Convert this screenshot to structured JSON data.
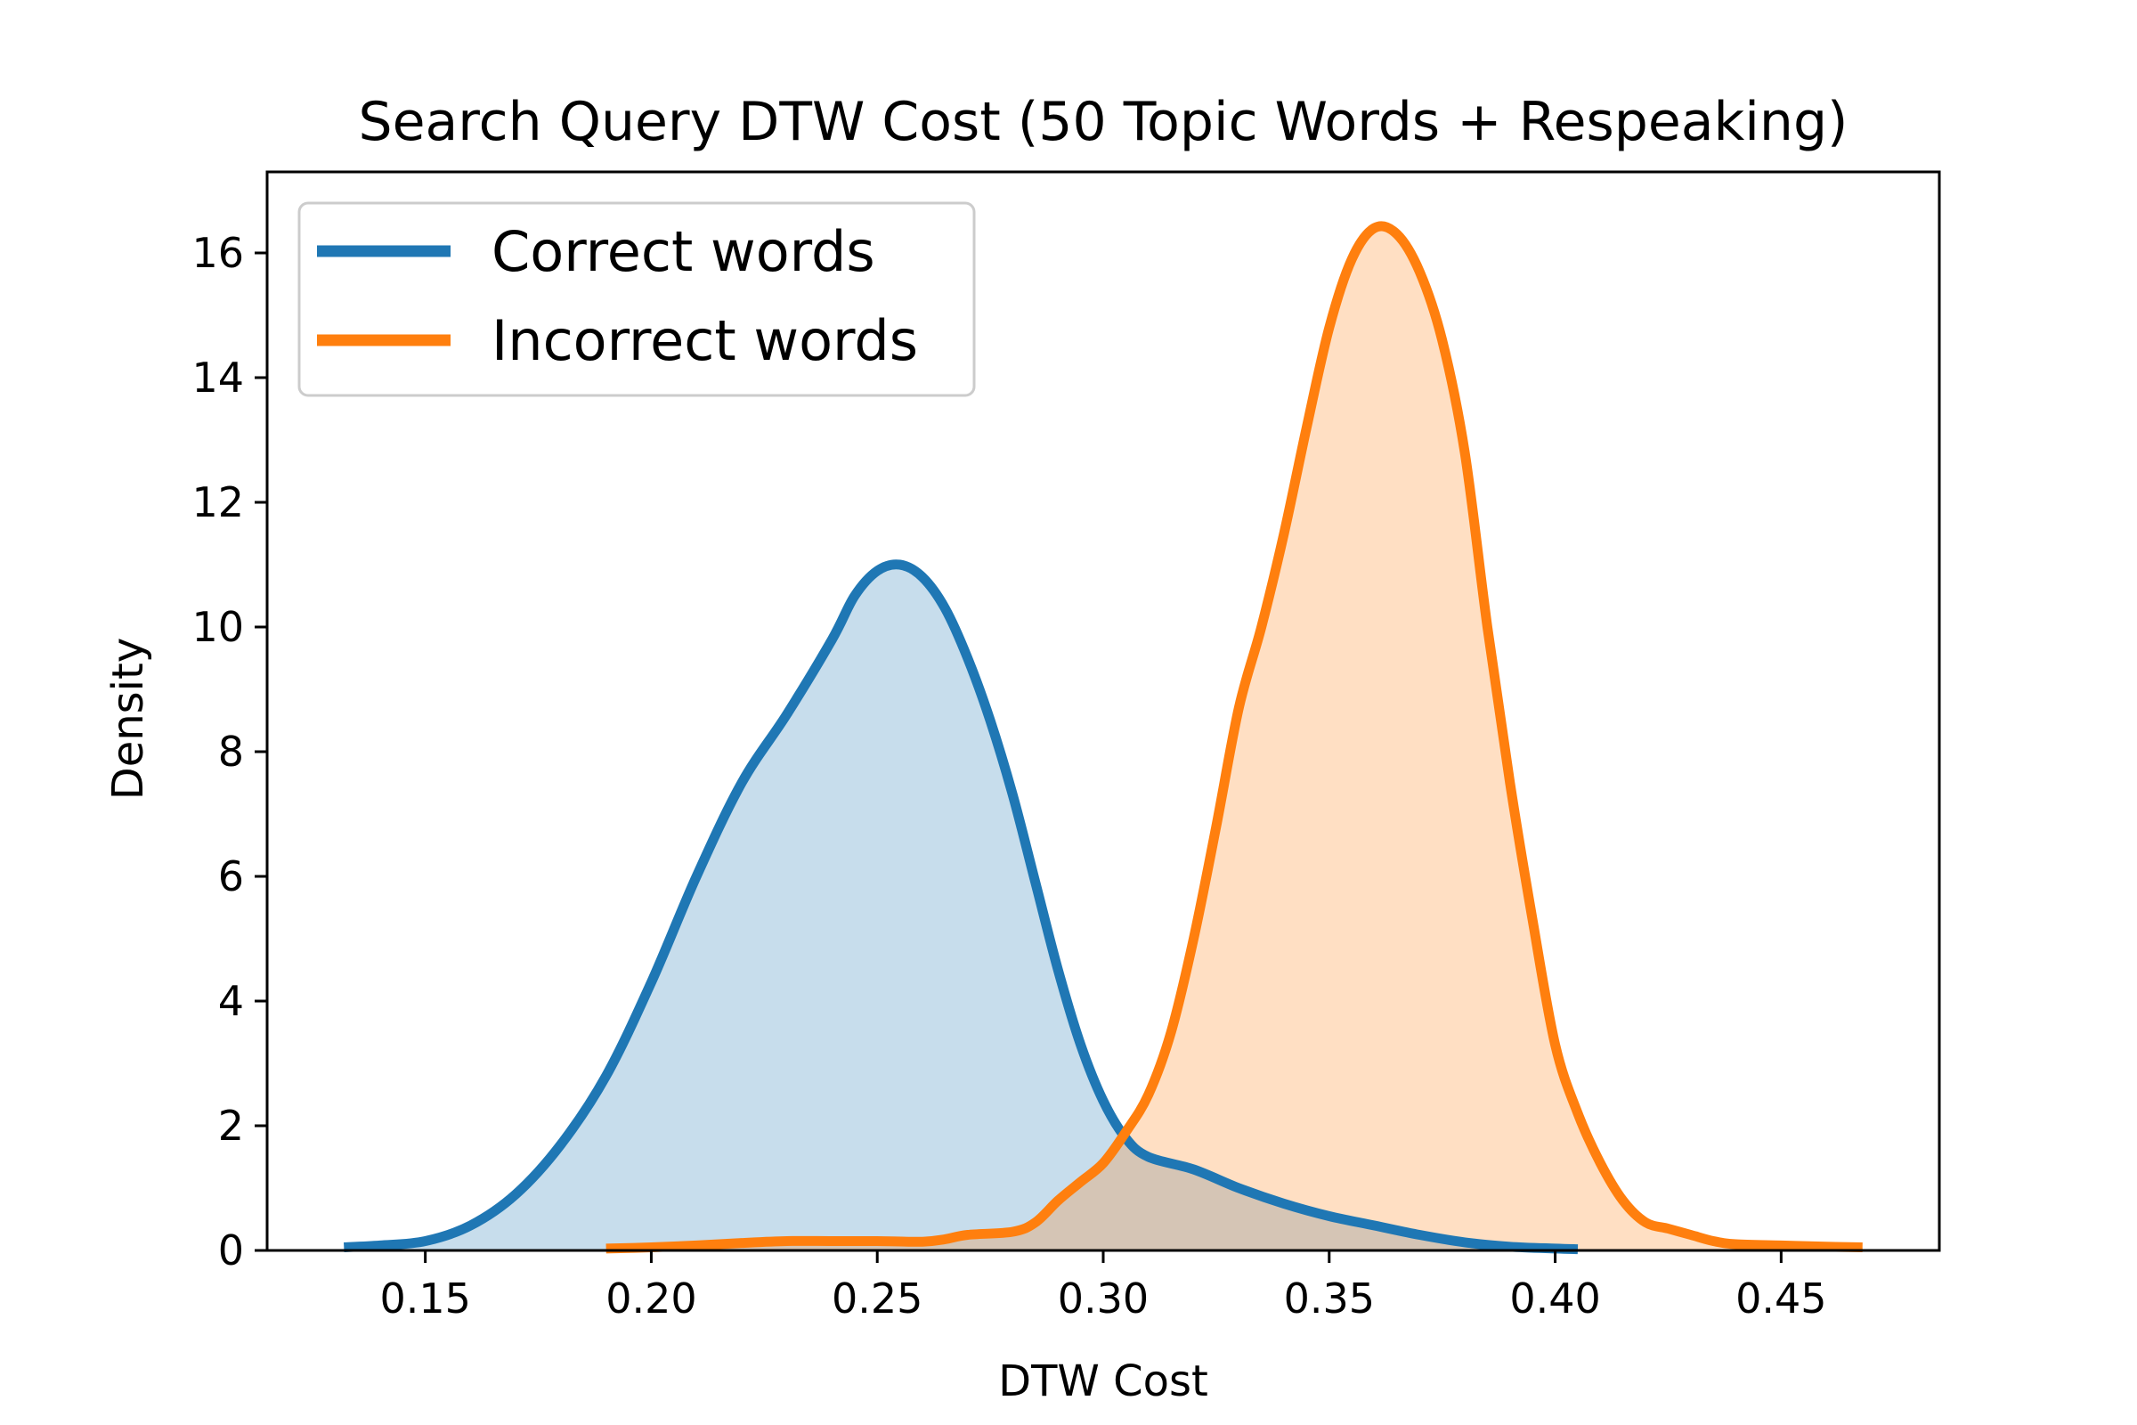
{
  "chart_data": {
    "type": "area",
    "title": "Search Query DTW Cost  (50 Topic Words + Respeaking)",
    "xlabel": "DTW Cost",
    "ylabel": "Density",
    "xlim": [
      0.115,
      0.485
    ],
    "ylim": [
      0,
      17.3
    ],
    "x_ticks": [
      0.15,
      0.2,
      0.25,
      0.3,
      0.35,
      0.4,
      0.45
    ],
    "x_tick_labels": [
      "0.15",
      "0.20",
      "0.25",
      "0.30",
      "0.35",
      "0.40",
      "0.45"
    ],
    "y_ticks": [
      0,
      2,
      4,
      6,
      8,
      10,
      12,
      14,
      16
    ],
    "y_tick_labels": [
      "0",
      "2",
      "4",
      "6",
      "8",
      "10",
      "12",
      "14",
      "16"
    ],
    "grid": false,
    "legend_position": "upper-left",
    "series": [
      {
        "name": "Correct words",
        "color": "#1f77b4",
        "fill_color": "#c5dbec",
        "points": [
          [
            0.132,
            0.05
          ],
          [
            0.14,
            0.08
          ],
          [
            0.15,
            0.15
          ],
          [
            0.16,
            0.4
          ],
          [
            0.17,
            0.9
          ],
          [
            0.18,
            1.7
          ],
          [
            0.19,
            2.8
          ],
          [
            0.2,
            4.3
          ],
          [
            0.21,
            6.0
          ],
          [
            0.22,
            7.5
          ],
          [
            0.23,
            8.6
          ],
          [
            0.24,
            9.8
          ],
          [
            0.245,
            10.5
          ],
          [
            0.25,
            10.9
          ],
          [
            0.255,
            11.0
          ],
          [
            0.26,
            10.8
          ],
          [
            0.265,
            10.3
          ],
          [
            0.27,
            9.5
          ],
          [
            0.275,
            8.5
          ],
          [
            0.28,
            7.3
          ],
          [
            0.285,
            5.9
          ],
          [
            0.29,
            4.5
          ],
          [
            0.295,
            3.3
          ],
          [
            0.3,
            2.4
          ],
          [
            0.305,
            1.8
          ],
          [
            0.31,
            1.5
          ],
          [
            0.32,
            1.3
          ],
          [
            0.33,
            1.0
          ],
          [
            0.34,
            0.75
          ],
          [
            0.35,
            0.55
          ],
          [
            0.36,
            0.4
          ],
          [
            0.37,
            0.25
          ],
          [
            0.38,
            0.13
          ],
          [
            0.39,
            0.06
          ],
          [
            0.4,
            0.03
          ],
          [
            0.405,
            0.02
          ]
        ]
      },
      {
        "name": "Incorrect words",
        "color": "#ff7f0e",
        "fill_color": "#fddcc1",
        "points": [
          [
            0.19,
            0.03
          ],
          [
            0.2,
            0.05
          ],
          [
            0.21,
            0.08
          ],
          [
            0.22,
            0.12
          ],
          [
            0.23,
            0.15
          ],
          [
            0.24,
            0.15
          ],
          [
            0.25,
            0.15
          ],
          [
            0.26,
            0.14
          ],
          [
            0.265,
            0.18
          ],
          [
            0.27,
            0.25
          ],
          [
            0.28,
            0.3
          ],
          [
            0.285,
            0.45
          ],
          [
            0.29,
            0.8
          ],
          [
            0.295,
            1.1
          ],
          [
            0.3,
            1.4
          ],
          [
            0.305,
            1.9
          ],
          [
            0.31,
            2.5
          ],
          [
            0.315,
            3.5
          ],
          [
            0.32,
            5.0
          ],
          [
            0.325,
            6.8
          ],
          [
            0.33,
            8.7
          ],
          [
            0.335,
            10.0
          ],
          [
            0.34,
            11.5
          ],
          [
            0.345,
            13.2
          ],
          [
            0.35,
            14.8
          ],
          [
            0.355,
            15.9
          ],
          [
            0.36,
            16.4
          ],
          [
            0.365,
            16.3
          ],
          [
            0.37,
            15.7
          ],
          [
            0.375,
            14.6
          ],
          [
            0.38,
            12.8
          ],
          [
            0.385,
            10.0
          ],
          [
            0.39,
            7.5
          ],
          [
            0.395,
            5.3
          ],
          [
            0.4,
            3.3
          ],
          [
            0.405,
            2.2
          ],
          [
            0.41,
            1.4
          ],
          [
            0.415,
            0.8
          ],
          [
            0.42,
            0.45
          ],
          [
            0.425,
            0.35
          ],
          [
            0.43,
            0.25
          ],
          [
            0.435,
            0.15
          ],
          [
            0.44,
            0.1
          ],
          [
            0.45,
            0.08
          ],
          [
            0.46,
            0.06
          ],
          [
            0.468,
            0.05
          ]
        ]
      }
    ]
  }
}
